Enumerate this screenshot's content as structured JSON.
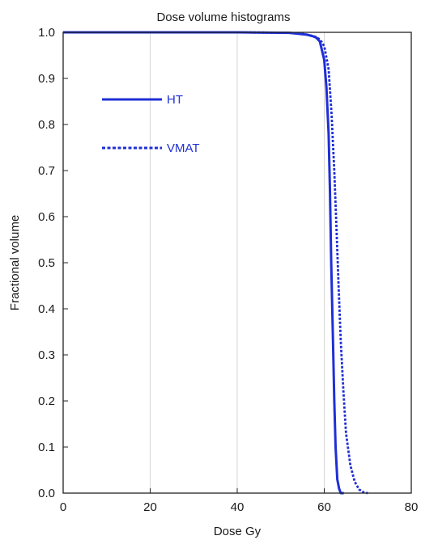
{
  "chart_data": {
    "type": "line",
    "title": "Dose volume histograms",
    "xlabel": "Dose Gy",
    "ylabel": "Fractional volume",
    "xlim": [
      0,
      80
    ],
    "ylim": [
      0,
      1
    ],
    "xticks": [
      0,
      20,
      40,
      60,
      80
    ],
    "yticks": [
      0.0,
      0.1,
      0.2,
      0.3,
      0.4,
      0.5,
      0.6,
      0.7,
      0.8,
      0.9,
      1.0
    ],
    "ytick_labels": [
      "0.0",
      "0.1",
      "0.2",
      "0.3",
      "0.4",
      "0.5",
      "0.6",
      "0.7",
      "0.8",
      "0.9",
      "1.0"
    ],
    "grid": "vertical",
    "legend_placement": "upper-left",
    "colors": {
      "series": "#1f2fd6",
      "grid": "#d6d6d6",
      "axis": "#222222"
    },
    "series": [
      {
        "name": "HT",
        "style": "solid",
        "x": [
          0,
          40,
          52,
          56,
          58,
          59,
          60,
          60.5,
          61,
          61.3,
          61.6,
          62,
          62.3,
          62.6,
          63,
          63.4,
          63.8,
          64.5
        ],
        "y": [
          1.0,
          1.0,
          0.999,
          0.995,
          0.99,
          0.98,
          0.94,
          0.88,
          0.78,
          0.66,
          0.5,
          0.33,
          0.2,
          0.1,
          0.03,
          0.01,
          0.0,
          0.0
        ]
      },
      {
        "name": "VMAT",
        "style": "dotted",
        "x": [
          0,
          40,
          52,
          55,
          57,
          59,
          60,
          61,
          61.7,
          62.3,
          62.8,
          63.3,
          63.8,
          64.4,
          65,
          66,
          67,
          68,
          69,
          70
        ],
        "y": [
          1.0,
          1.0,
          0.999,
          0.997,
          0.993,
          0.985,
          0.97,
          0.92,
          0.82,
          0.7,
          0.58,
          0.45,
          0.33,
          0.22,
          0.13,
          0.06,
          0.025,
          0.008,
          0.002,
          0.0
        ]
      }
    ]
  }
}
